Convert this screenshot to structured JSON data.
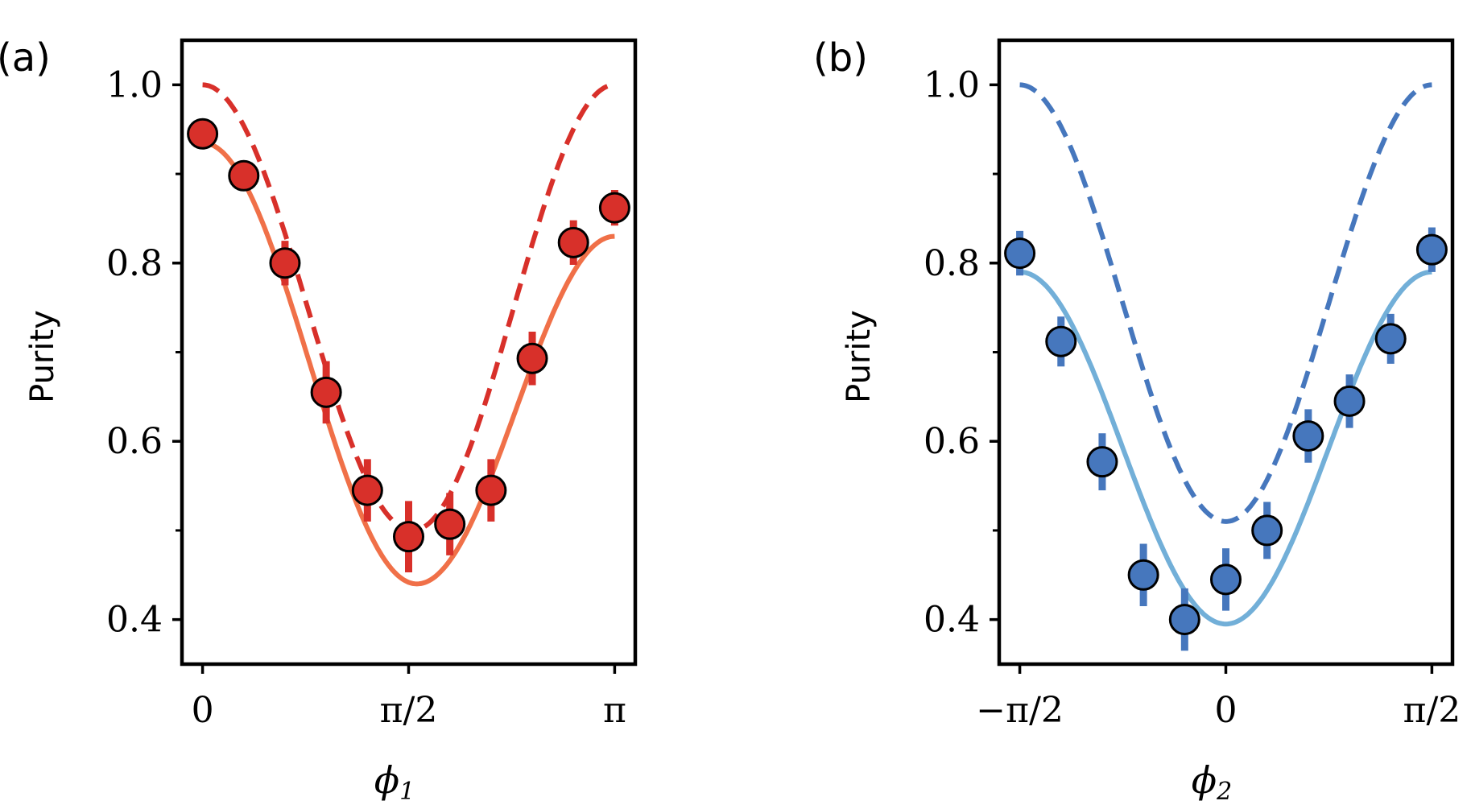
{
  "chart_data": [
    {
      "type": "scatter",
      "panel_label": "(a)",
      "xlabel": "ϕ",
      "xlabel_sub": "1",
      "ylabel": "Purity",
      "xlim": [
        -0.05,
        1.05
      ],
      "ylim": [
        0.35,
        1.05
      ],
      "yticks": [
        {
          "value": 0.4,
          "label": "0.4"
        },
        {
          "value": 0.6,
          "label": "0.6"
        },
        {
          "value": 0.8,
          "label": "0.8"
        },
        {
          "value": 1.0,
          "label": "1.0"
        }
      ],
      "yminor": [
        0.5,
        0.7,
        0.9
      ],
      "xticks": [
        {
          "value": 0,
          "label": "0"
        },
        {
          "value": 0.5,
          "label": "π/2"
        },
        {
          "value": 1,
          "label": "π"
        }
      ],
      "x_unit": "π",
      "points": {
        "name": "measured",
        "color": "#d8302a",
        "x": [
          0,
          0.1,
          0.2,
          0.3,
          0.4,
          0.5,
          0.6,
          0.7,
          0.8,
          0.9,
          1.0
        ],
        "y": [
          0.945,
          0.898,
          0.8,
          0.655,
          0.545,
          0.493,
          0.507,
          0.545,
          0.693,
          0.823,
          0.862
        ],
        "err": [
          0.012,
          0.012,
          0.025,
          0.035,
          0.035,
          0.04,
          0.035,
          0.035,
          0.03,
          0.025,
          0.02
        ]
      },
      "curves": [
        {
          "name": "ideal",
          "style": "dashed",
          "color": "#d8302a",
          "min": 0.5,
          "max": 1.0,
          "center": 0.51,
          "amp_power": 2
        },
        {
          "name": "fit",
          "style": "solid",
          "color": "#f07048",
          "min": 0.44,
          "max": 0.935,
          "right_max": 0.83,
          "center": 0.52
        }
      ]
    },
    {
      "type": "scatter",
      "panel_label": "(b)",
      "xlabel": "ϕ",
      "xlabel_sub": "2",
      "ylabel": "Purity",
      "xlim": [
        -0.55,
        0.55
      ],
      "ylim": [
        0.35,
        1.05
      ],
      "yticks": [
        {
          "value": 0.4,
          "label": "0.4"
        },
        {
          "value": 0.6,
          "label": "0.6"
        },
        {
          "value": 0.8,
          "label": "0.8"
        },
        {
          "value": 1.0,
          "label": "1.0"
        }
      ],
      "yminor": [
        0.5,
        0.7,
        0.9
      ],
      "xticks": [
        {
          "value": -0.5,
          "label": "−π/2"
        },
        {
          "value": 0,
          "label": "0"
        },
        {
          "value": 0.5,
          "label": "π/2"
        }
      ],
      "x_unit": "π",
      "points": {
        "name": "measured",
        "color": "#4677bd",
        "x": [
          -0.5,
          -0.4,
          -0.3,
          -0.2,
          -0.1,
          0.0,
          0.1,
          0.2,
          0.3,
          0.4,
          0.5
        ],
        "y": [
          0.811,
          0.712,
          0.577,
          0.45,
          0.4,
          0.445,
          0.5,
          0.606,
          0.645,
          0.715,
          0.815
        ],
        "err": [
          0.025,
          0.028,
          0.032,
          0.035,
          0.035,
          0.035,
          0.032,
          0.03,
          0.03,
          0.028,
          0.025
        ]
      },
      "curves": [
        {
          "name": "ideal",
          "style": "dashed",
          "color": "#4677bd",
          "min": 0.51,
          "max": 1.0,
          "center": 0.0
        },
        {
          "name": "fit",
          "style": "solid",
          "color": "#72afd8",
          "min": 0.395,
          "max": 0.79,
          "center": 0.0
        }
      ]
    }
  ]
}
